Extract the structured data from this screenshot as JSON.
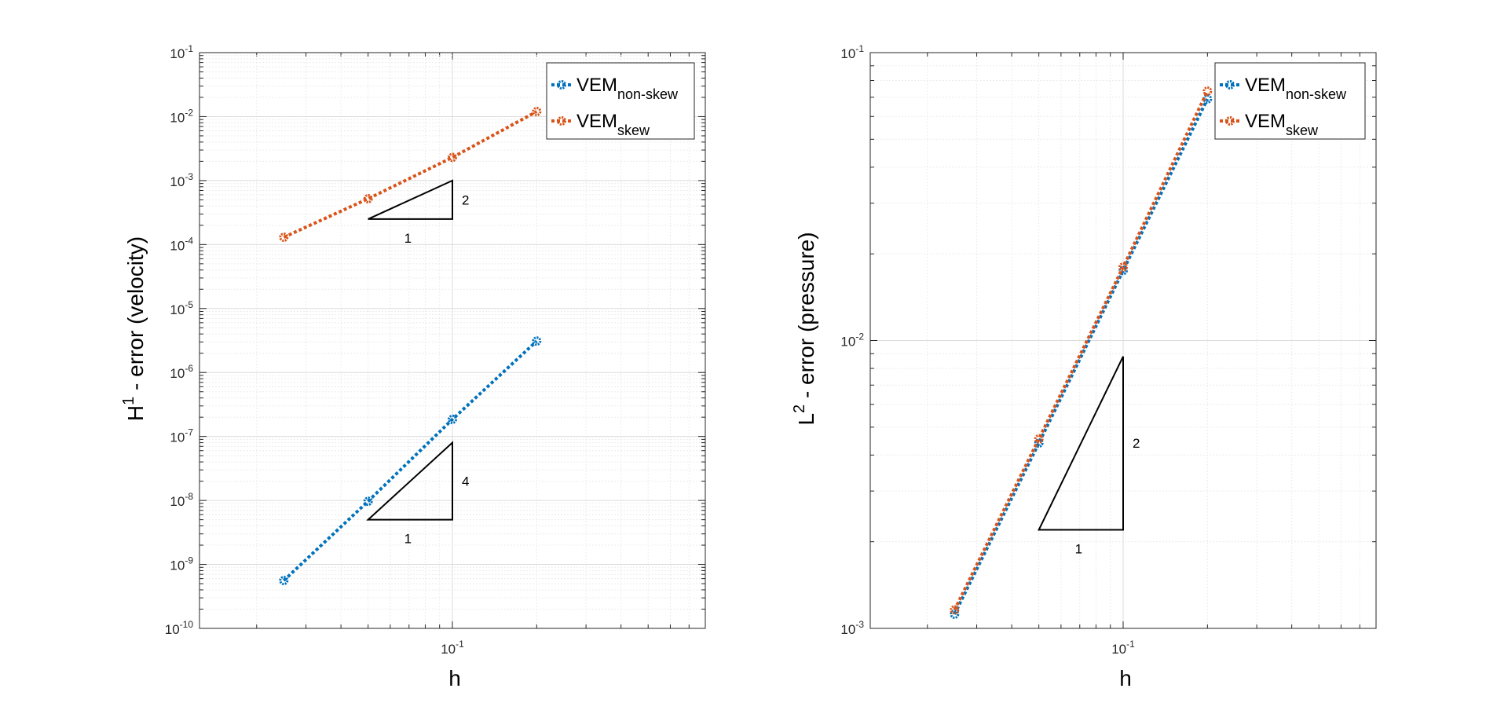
{
  "chart_data": [
    {
      "type": "line",
      "xscale": "log",
      "yscale": "log",
      "xlim": [
        0.0125,
        0.8
      ],
      "ylim": [
        1e-10,
        0.1
      ],
      "xlabel": "h",
      "ylabel": {
        "base": "H",
        "sup": "1",
        "rest": " - error (velocity)"
      },
      "x_ticks": [
        {
          "value": 0.1,
          "base": "10",
          "exp": "-1"
        }
      ],
      "y_ticks": [
        {
          "value": 1e-10,
          "base": "10",
          "exp": "-10"
        },
        {
          "value": 1e-09,
          "base": "10",
          "exp": "-9"
        },
        {
          "value": 1e-08,
          "base": "10",
          "exp": "-8"
        },
        {
          "value": 1e-07,
          "base": "10",
          "exp": "-7"
        },
        {
          "value": 1e-06,
          "base": "10",
          "exp": "-6"
        },
        {
          "value": 1e-05,
          "base": "10",
          "exp": "-5"
        },
        {
          "value": 0.0001,
          "base": "10",
          "exp": "-4"
        },
        {
          "value": 0.001,
          "base": "10",
          "exp": "-3"
        },
        {
          "value": 0.01,
          "base": "10",
          "exp": "-2"
        },
        {
          "value": 0.1,
          "base": "10",
          "exp": "-1"
        }
      ],
      "grid": true,
      "legend_position": "top-right",
      "series": [
        {
          "name": "VEM",
          "sub": "non-skew",
          "color": "#0072BD",
          "x": [
            0.025,
            0.05,
            0.1,
            0.2
          ],
          "values": [
            5.6e-10,
            9.7e-09,
            1.85e-07,
            3.1e-06
          ]
        },
        {
          "name": "VEM",
          "sub": "skew",
          "color": "#D95319",
          "x": [
            0.025,
            0.05,
            0.1,
            0.2
          ],
          "values": [
            0.00013,
            0.00052,
            0.0023,
            0.012
          ]
        }
      ],
      "slope_triangles": [
        {
          "x": [
            0.05,
            0.1
          ],
          "y": [
            0.00025,
            0.001
          ],
          "run_label": "1",
          "rise_label": "2"
        },
        {
          "x": [
            0.05,
            0.1
          ],
          "y": [
            5e-09,
            8e-08
          ],
          "run_label": "1",
          "rise_label": "4"
        }
      ]
    },
    {
      "type": "line",
      "xscale": "log",
      "yscale": "log",
      "xlim": [
        0.0125,
        0.8
      ],
      "ylim": [
        0.001,
        0.1
      ],
      "xlabel": "h",
      "ylabel": {
        "base": "L",
        "sup": "2",
        "rest": " - error (pressure)"
      },
      "x_ticks": [
        {
          "value": 0.1,
          "base": "10",
          "exp": "-1"
        }
      ],
      "y_ticks": [
        {
          "value": 0.001,
          "base": "10",
          "exp": "-3"
        },
        {
          "value": 0.01,
          "base": "10",
          "exp": "-2"
        },
        {
          "value": 0.1,
          "base": "10",
          "exp": "-1"
        }
      ],
      "grid": true,
      "legend_position": "top-right",
      "series": [
        {
          "name": "VEM",
          "sub": "non-skew",
          "color": "#0072BD",
          "x": [
            0.025,
            0.05,
            0.1,
            0.2
          ],
          "values": [
            0.00112,
            0.0044,
            0.0175,
            0.069
          ]
        },
        {
          "name": "VEM",
          "sub": "skew",
          "color": "#D95319",
          "x": [
            0.025,
            0.05,
            0.1,
            0.2
          ],
          "values": [
            0.00116,
            0.00455,
            0.018,
            0.0735
          ]
        }
      ],
      "slope_triangles": [
        {
          "x": [
            0.05,
            0.1
          ],
          "y": [
            0.0022,
            0.0088
          ],
          "run_label": "1",
          "rise_label": "2"
        }
      ]
    }
  ]
}
